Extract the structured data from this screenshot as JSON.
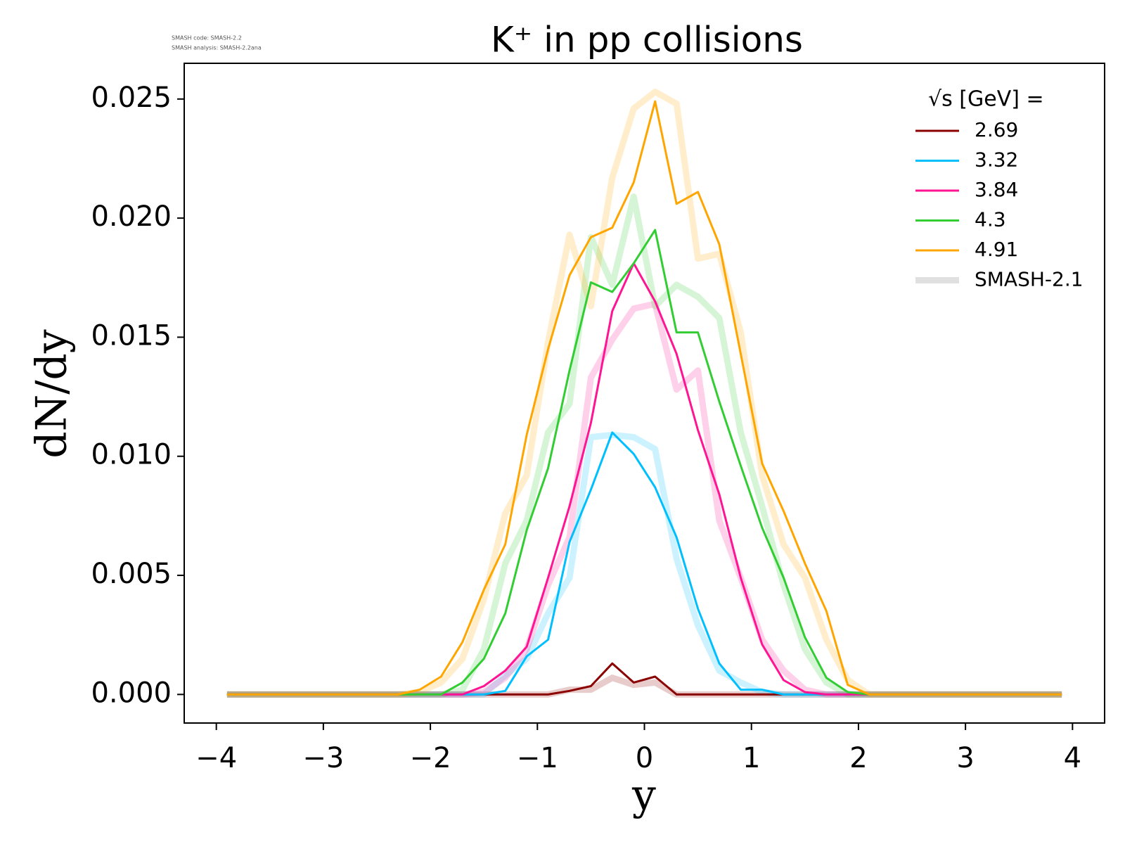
{
  "chart_data": {
    "type": "line",
    "title": "K⁺ in pp collisions",
    "annotations": [
      "SMASH code:      SMASH-2.2",
      "SMASH analysis: SMASH-2.2ana"
    ],
    "xlabel": "y",
    "ylabel": "dN/dy",
    "legend_title": "√s  [GeV] =",
    "legend": "upper right",
    "xlim": [
      -4.3,
      4.3
    ],
    "xticks": [
      {
        "value": -4,
        "label": "−4"
      },
      {
        "value": -3,
        "label": "−3"
      },
      {
        "value": -2,
        "label": "−2"
      },
      {
        "value": -1,
        "label": "−1"
      },
      0,
      1,
      2,
      3,
      4
    ],
    "ylim": [
      -0.0012,
      0.0265
    ],
    "yticks": [
      {
        "value": 0,
        "label": "0.000"
      },
      {
        "value": 0.005,
        "label": "0.005"
      },
      {
        "value": 0.01,
        "label": "0.010"
      },
      {
        "value": 0.015,
        "label": "0.015"
      },
      {
        "value": 0.02,
        "label": "0.020"
      },
      {
        "value": 0.025,
        "label": "0.025"
      }
    ],
    "x": [
      -3.9,
      -3.7,
      -3.5,
      -3.3,
      -3.1,
      -2.9,
      -2.7,
      -2.5,
      -2.3,
      -2.1,
      -1.9,
      -1.7,
      -1.5,
      -1.3,
      -1.1,
      -0.9,
      -0.7,
      -0.5,
      -0.3,
      -0.1,
      0.1,
      0.3,
      0.5,
      0.7,
      0.9,
      1.1,
      1.3,
      1.5,
      1.7,
      1.9,
      2.1,
      2.3,
      2.5,
      2.7,
      2.9,
      3.1,
      3.3,
      3.5,
      3.7,
      3.9
    ],
    "reference": {
      "name": "SMASH-2.1",
      "color": "#d3d3d3"
    },
    "series": [
      {
        "name": "2.69",
        "color": "#8b0000",
        "values": [
          0,
          0,
          0,
          0,
          0,
          0,
          0,
          0,
          0,
          0,
          0,
          0,
          0,
          0,
          0,
          0,
          0.00015,
          0.00035,
          0.0013,
          0.0005,
          0.00075,
          0,
          0,
          0,
          0,
          0,
          0,
          0,
          0,
          0,
          0,
          0,
          0,
          0,
          0,
          0,
          0,
          0,
          0,
          0
        ],
        "reference_values": [
          0,
          0,
          0,
          0,
          0,
          0,
          0,
          0,
          0,
          0,
          0,
          0,
          0,
          0,
          0,
          0,
          0.0002,
          0.0002,
          0.0007,
          0.0004,
          0.0005,
          0,
          0,
          0,
          0,
          0,
          0,
          0,
          0,
          0,
          0,
          0,
          0,
          0,
          0,
          0,
          0,
          0,
          0,
          0
        ]
      },
      {
        "name": "3.32",
        "color": "#00bfff",
        "values": [
          0,
          0,
          0,
          0,
          0,
          0,
          0,
          0,
          0,
          0,
          0,
          0,
          0,
          0.00015,
          0.0016,
          0.0023,
          0.0064,
          0.0086,
          0.011,
          0.0101,
          0.0087,
          0.0066,
          0.0036,
          0.0013,
          0.0002,
          0.0002,
          0,
          0,
          0,
          0,
          0,
          0,
          0,
          0,
          0,
          0,
          0,
          0,
          0,
          0
        ],
        "reference_values": [
          0,
          0,
          0,
          0,
          0,
          0,
          0,
          0,
          0,
          0,
          0,
          0,
          0,
          0.0008,
          0.0015,
          0.0034,
          0.0049,
          0.0108,
          0.0109,
          0.0108,
          0.0103,
          0.0057,
          0.0029,
          0.001,
          0.0005,
          0.0001,
          0,
          0,
          0,
          0,
          0,
          0,
          0,
          0,
          0,
          0,
          0,
          0,
          0,
          0
        ]
      },
      {
        "name": "3.84",
        "color": "#ff1493",
        "values": [
          0,
          0,
          0,
          0,
          0,
          0,
          0,
          0,
          0,
          0,
          0,
          0,
          0.00035,
          0.001,
          0.002,
          0.0049,
          0.0079,
          0.0114,
          0.0161,
          0.0181,
          0.0165,
          0.0143,
          0.0111,
          0.0084,
          0.0049,
          0.0021,
          0.0006,
          0.0001,
          0,
          0,
          0,
          0,
          0,
          0,
          0,
          0,
          0,
          0,
          0,
          0
        ],
        "reference_values": [
          0,
          0,
          0,
          0,
          0,
          0,
          0,
          0,
          0,
          0,
          0,
          0,
          0.0001,
          0.0007,
          0.0019,
          0.0046,
          0.0066,
          0.0133,
          0.0149,
          0.0162,
          0.0164,
          0.0128,
          0.0136,
          0.0073,
          0.0049,
          0.0023,
          0.001,
          0.0002,
          0,
          0,
          0,
          0,
          0,
          0,
          0,
          0,
          0,
          0,
          0,
          0
        ]
      },
      {
        "name": "4.3",
        "color": "#32cd32",
        "values": [
          0,
          0,
          0,
          0,
          0,
          0,
          0,
          0,
          0,
          0,
          0,
          0.0005,
          0.0015,
          0.0034,
          0.0069,
          0.0095,
          0.0136,
          0.0173,
          0.0169,
          0.0181,
          0.0195,
          0.0152,
          0.0152,
          0.0123,
          0.0096,
          0.007,
          0.0049,
          0.0024,
          0.0007,
          0.0001,
          0,
          0,
          0,
          0,
          0,
          0,
          0,
          0,
          0,
          0
        ],
        "reference_values": [
          0,
          0,
          0,
          0,
          0,
          0,
          0,
          0,
          0,
          0,
          0,
          0.0002,
          0.0019,
          0.0055,
          0.0073,
          0.011,
          0.0122,
          0.0192,
          0.0172,
          0.0209,
          0.0163,
          0.0172,
          0.0167,
          0.0158,
          0.011,
          0.0079,
          0.0046,
          0.0019,
          0.0005,
          0,
          0,
          0,
          0,
          0,
          0,
          0,
          0,
          0,
          0,
          0
        ]
      },
      {
        "name": "4.91",
        "color": "#ffa500",
        "values": [
          0,
          0,
          0,
          0,
          0,
          0,
          0,
          0,
          0,
          0.0002,
          0.00075,
          0.0022,
          0.0044,
          0.0063,
          0.0109,
          0.0145,
          0.0176,
          0.0192,
          0.0196,
          0.0215,
          0.0249,
          0.0206,
          0.0211,
          0.0189,
          0.0143,
          0.0097,
          0.0077,
          0.0055,
          0.0035,
          0.0004,
          0,
          0,
          0,
          0,
          0,
          0,
          0,
          0,
          0,
          0
        ],
        "reference_values": [
          0,
          0,
          0,
          0,
          0,
          0,
          0,
          0,
          0,
          0.0001,
          0.0005,
          0.0015,
          0.004,
          0.0076,
          0.0092,
          0.0148,
          0.0193,
          0.0163,
          0.0217,
          0.0246,
          0.0253,
          0.0248,
          0.0183,
          0.0185,
          0.0152,
          0.0092,
          0.0063,
          0.0049,
          0.0023,
          0.0006,
          0,
          0,
          0,
          0,
          0,
          0,
          0,
          0,
          0,
          0
        ]
      }
    ]
  }
}
